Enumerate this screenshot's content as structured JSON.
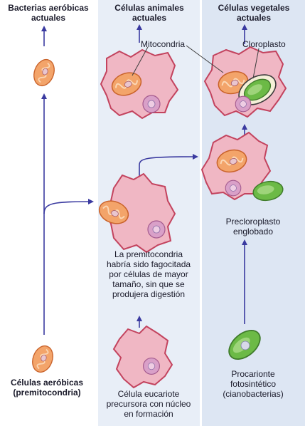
{
  "columns": {
    "left_title": "Bacterias aeróbicas actuales",
    "mid_title": "Células animales actuales",
    "right_title": "Células vegetales actuales"
  },
  "labels": {
    "mitocondria": "Mitocondria",
    "cloroplasto": "Cloroplasto",
    "precloroplasto": "Precloroplasto englobado",
    "fagocitada": "La premitocondria habría sido fagocitada por células de mayor tamaño, sin que se produjera digestión",
    "aerobicas": "Células aeróbicas (premitocondria)",
    "eucariote": "Célula eucariote precursora con núcleo en formación",
    "procarionte": "Procarionte fotosintético (cianobacterias)"
  },
  "colors": {
    "arrow": "#3a3aa0",
    "cell_pink": "#f0b7c4",
    "cell_outline": "#c3435e",
    "mito_orange": "#f3a46a",
    "chloro_green": "#6cba46",
    "panel_light": "#e8eef7"
  }
}
